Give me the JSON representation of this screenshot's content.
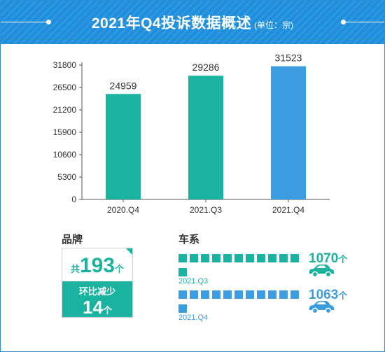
{
  "header": {
    "title": "2021年Q4投诉数据概述",
    "unit": "(单位：宗)"
  },
  "chart_data": {
    "type": "bar",
    "categories": [
      "2020.Q4",
      "2021.Q3",
      "2021.Q4"
    ],
    "values": [
      24959,
      29286,
      31523
    ],
    "data_labels": [
      "24959",
      "29286",
      "31523"
    ],
    "y_ticks": [
      "0",
      "5300",
      "10600",
      "15900",
      "21200",
      "26500",
      "31800"
    ],
    "ylim": [
      0,
      31800
    ],
    "grid": false,
    "colors": [
      "#19b3a0",
      "#19b3a0",
      "#3b9de0"
    ]
  },
  "brand": {
    "title": "品牌",
    "prefix": "共",
    "count": "193",
    "unit": "个",
    "change_label": "环比减少",
    "change_value": "14",
    "change_unit": "个",
    "color": "#19b3a0"
  },
  "series": {
    "title": "车系",
    "rows": [
      {
        "period": "2021.Q3",
        "value": "1070",
        "unit": "个",
        "color": "#19b3a0"
      },
      {
        "period": "2021.Q4",
        "value": "1063",
        "unit": "个",
        "color": "#3b9de0"
      }
    ]
  }
}
